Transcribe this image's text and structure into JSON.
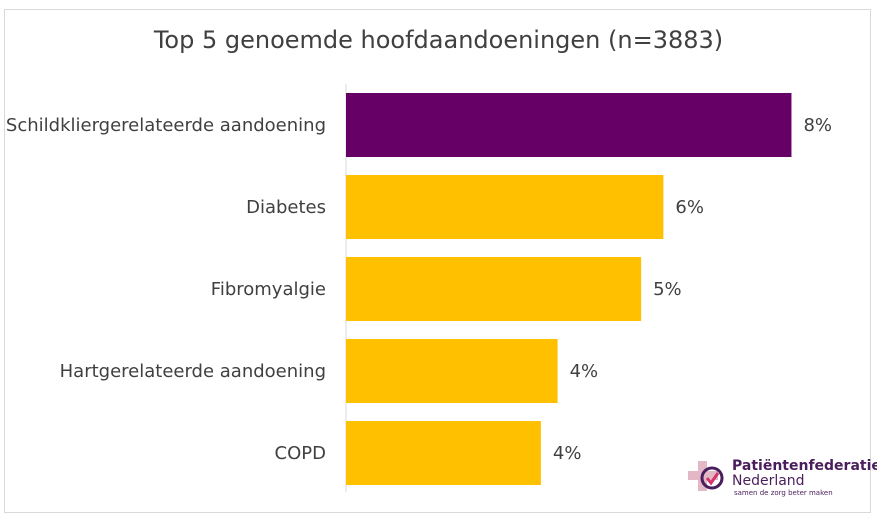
{
  "chart_data": {
    "type": "bar",
    "orientation": "horizontal",
    "title": "Top 5 genoemde hoofdaandoeningen (n=3883)",
    "categories": [
      "Schildkliergerelateerde aandoening",
      "Diabetes",
      "Fibromyalgie",
      "Hartgerelateerde aandoening",
      "COPD"
    ],
    "values": [
      8.0,
      5.7,
      5.3,
      3.8,
      3.5
    ],
    "value_labels": [
      "8%",
      "6%",
      "5%",
      "4%",
      "4%"
    ],
    "colors": [
      "#660066",
      "#ffc000",
      "#ffc000",
      "#ffc000",
      "#ffc000"
    ],
    "xlim": [
      0,
      8.8
    ],
    "xlabel": "",
    "ylabel": "",
    "grid": false
  },
  "logo": {
    "line1": "Patiëntenfederatie",
    "line2": "Nederland",
    "tagline": "samen de zorg beter maken"
  }
}
